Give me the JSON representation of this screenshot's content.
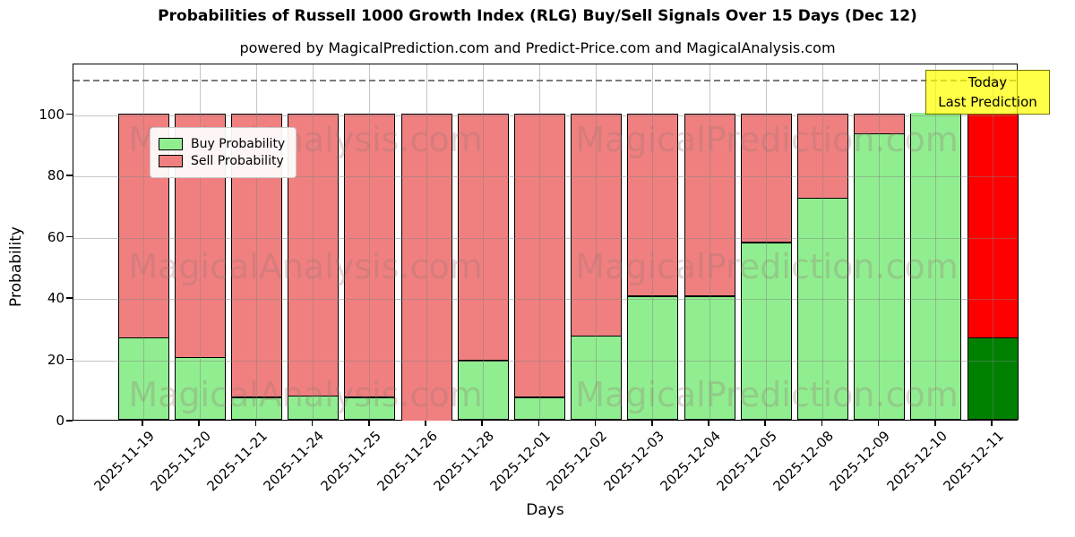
{
  "title": "Probabilities of Russell 1000 Growth Index (RLG) Buy/Sell Signals Over 15 Days (Dec 12)",
  "subtitle": "powered by MagicalPrediction.com and Predict-Price.com and MagicalAnalysis.com",
  "legend": {
    "buy_label": "Buy Probability",
    "sell_label": "Sell Probability"
  },
  "annotation_box": {
    "line1": "Today",
    "line2": "Last Prediction"
  },
  "axes": {
    "x_label": "Days",
    "y_label": "Probability",
    "y_tick_labels": [
      "0",
      "20",
      "40",
      "60",
      "80",
      "100"
    ]
  },
  "watermarks": {
    "left_text": "MagicalAnalysis.com",
    "right_text": "MagicalPrediction.com"
  },
  "colors": {
    "buy": "#90EE90",
    "sell": "#F08080",
    "today_buy": "#008000",
    "today_sell": "#FF0000",
    "annotation_bg": "#FFFF00",
    "bar_edge": "#000000",
    "grid": "#808080"
  },
  "chart_data": {
    "type": "bar",
    "stacked": true,
    "title": "Probabilities of Russell 1000 Growth Index (RLG) Buy/Sell Signals Over 15 Days (Dec 12)",
    "xlabel": "Days",
    "ylabel": "Probability",
    "ylim": [
      0,
      116.5
    ],
    "dashed_reference_line_y": 111.5,
    "grid": true,
    "legend_position": "upper left",
    "y_ticks": [
      0,
      20,
      40,
      60,
      80,
      100
    ],
    "categories": [
      "2025-11-19",
      "2025-11-20",
      "2025-11-21",
      "2025-11-24",
      "2025-11-25",
      "2025-11-26",
      "2025-11-28",
      "2025-12-01",
      "2025-12-02",
      "2025-12-03",
      "2025-12-04",
      "2025-12-05",
      "2025-12-08",
      "2025-12-09",
      "2025-12-10",
      "2025-12-11"
    ],
    "series": [
      {
        "name": "Buy Probability",
        "values": [
          26.5,
          20,
          7,
          7.5,
          7,
          0,
          19,
          7,
          27,
          40,
          40,
          57.5,
          72,
          93,
          100,
          26.5
        ]
      },
      {
        "name": "Sell Probability",
        "values": [
          73.5,
          80,
          93,
          92.5,
          93,
          100,
          81,
          93,
          73,
          60,
          60,
          42.5,
          28,
          7,
          0,
          73.5
        ]
      }
    ],
    "today_bar": {
      "date": "2025-12-11",
      "buy": 26.5,
      "sell": 73.5,
      "note": "highlighted with dark green / bright red and yellow Today Last Prediction label"
    }
  }
}
